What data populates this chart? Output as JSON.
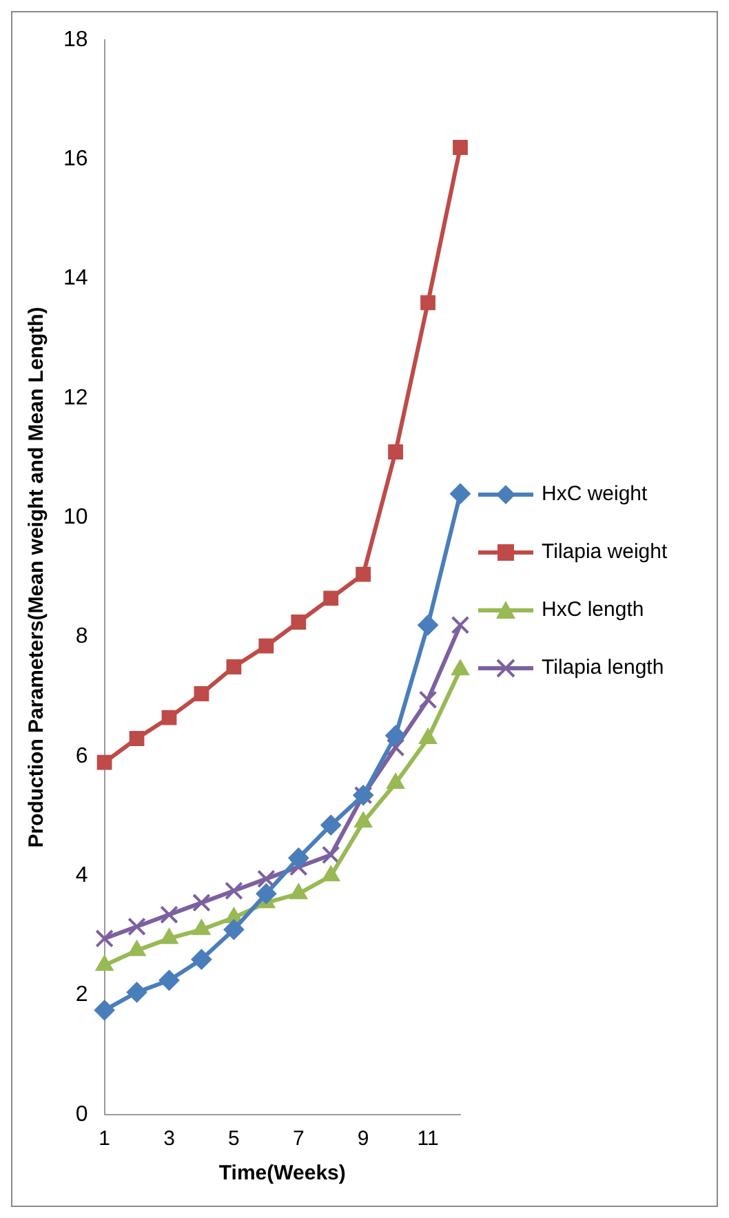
{
  "chart_data": {
    "type": "line",
    "xlabel": "Time(Weeks)",
    "ylabel": "Production Parameters(Mean weight and Mean Length)",
    "categories": [
      "1",
      null,
      "3",
      null,
      "5",
      null,
      "7",
      null,
      "9",
      null,
      "11",
      null
    ],
    "ylim": [
      0,
      18
    ],
    "yticks": [
      0,
      2,
      4,
      6,
      8,
      10,
      12,
      14,
      16,
      18
    ],
    "grid": false,
    "legend": "right",
    "series": [
      {
        "name": "HxC weight",
        "color": "#4a7ebb",
        "marker": "diamond",
        "values": [
          1.75,
          2.05,
          2.25,
          2.6,
          3.1,
          3.7,
          4.3,
          4.85,
          5.35,
          6.35,
          8.2,
          10.4
        ]
      },
      {
        "name": "Tilapia weight",
        "color": "#be4b48",
        "marker": "square",
        "values": [
          5.9,
          6.3,
          6.65,
          7.05,
          7.5,
          7.85,
          8.25,
          8.65,
          9.05,
          11.1,
          13.6,
          16.2
        ]
      },
      {
        "name": "HxC length",
        "color": "#98b954",
        "marker": "triangle",
        "values": [
          2.5,
          2.75,
          2.95,
          3.1,
          3.3,
          3.55,
          3.7,
          4.0,
          4.9,
          5.55,
          6.3,
          7.45
        ]
      },
      {
        "name": "Tilapia length",
        "color": "#7d60a0",
        "marker": "cross",
        "values": [
          2.95,
          3.15,
          3.35,
          3.55,
          3.75,
          3.95,
          4.15,
          4.35,
          5.35,
          6.15,
          6.95,
          8.2
        ]
      }
    ]
  }
}
